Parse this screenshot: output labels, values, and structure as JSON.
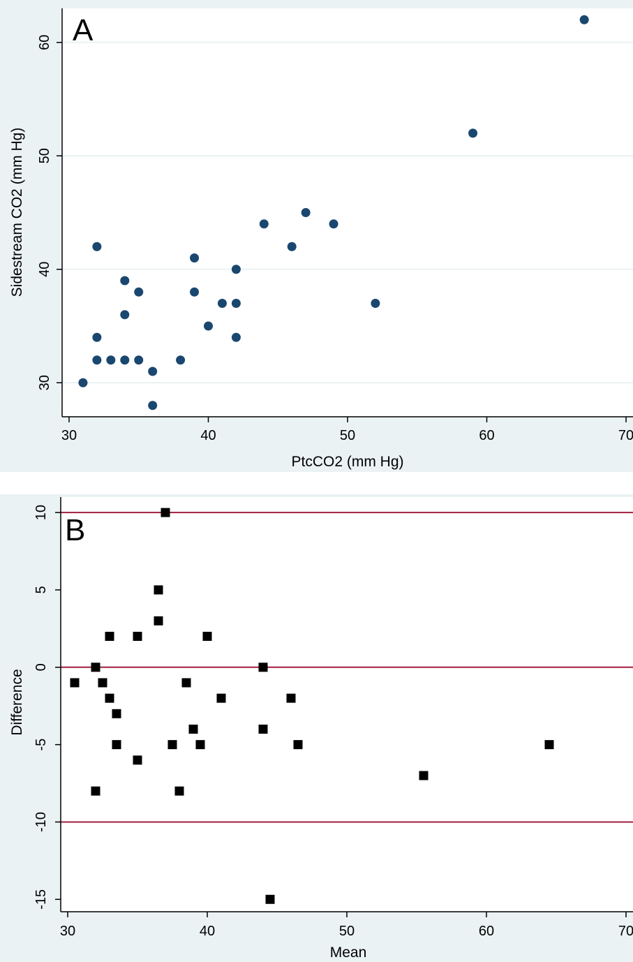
{
  "colors": {
    "outer_background": "#eaf2f3",
    "plot_background": "#ffffff",
    "grid": "#eaf2f3",
    "axis": "#000000",
    "scatter_marker": "#1a476f",
    "bland_altman_marker": "#000000",
    "reference_line": "#a01e3c"
  },
  "chart_data": [
    {
      "type": "scatter",
      "panel_label": "A",
      "xlabel": "PtcCO2 (mm Hg)",
      "ylabel": "Sidestream CO2 (mm Hg)",
      "xlim": [
        29.5,
        70.5
      ],
      "ylim": [
        27,
        63
      ],
      "xticks": [
        30,
        40,
        50,
        60,
        70
      ],
      "yticks": [
        30,
        40,
        50,
        60
      ],
      "xtick_labels": [
        "30",
        "40",
        "50",
        "60",
        "70"
      ],
      "ytick_labels": [
        "30",
        "40",
        "50",
        "60"
      ],
      "grid": true,
      "marker": "circle",
      "points": [
        [
          31,
          30
        ],
        [
          32,
          42
        ],
        [
          32,
          34
        ],
        [
          32,
          32
        ],
        [
          33,
          32
        ],
        [
          34,
          39
        ],
        [
          34,
          36
        ],
        [
          34,
          32
        ],
        [
          35,
          38
        ],
        [
          35,
          32
        ],
        [
          36,
          31
        ],
        [
          36,
          28
        ],
        [
          38,
          32
        ],
        [
          39,
          41
        ],
        [
          39,
          38
        ],
        [
          40,
          35
        ],
        [
          41,
          37
        ],
        [
          42,
          40
        ],
        [
          42,
          37
        ],
        [
          42,
          34
        ],
        [
          44,
          44
        ],
        [
          46,
          42
        ],
        [
          47,
          45
        ],
        [
          49,
          44
        ],
        [
          52,
          37
        ],
        [
          59,
          52
        ],
        [
          67,
          62
        ]
      ]
    },
    {
      "type": "scatter",
      "panel_label": "B",
      "xlabel": "Mean",
      "ylabel": "Difference",
      "xlim": [
        29.5,
        70.5
      ],
      "ylim": [
        -15.8,
        11
      ],
      "xticks": [
        30,
        40,
        50,
        60,
        70
      ],
      "yticks": [
        -15,
        -10,
        -5,
        0,
        5,
        10
      ],
      "xtick_labels": [
        "30",
        "40",
        "50",
        "60",
        "70"
      ],
      "ytick_labels": [
        "-15",
        "-10",
        "-5",
        "0",
        "5",
        "10"
      ],
      "grid": false,
      "marker": "square",
      "reference_lines": [
        10,
        0,
        -10
      ],
      "points": [
        [
          30.5,
          -1
        ],
        [
          32,
          0
        ],
        [
          32,
          -8
        ],
        [
          32.5,
          -1
        ],
        [
          33,
          2
        ],
        [
          33,
          -2
        ],
        [
          33.5,
          -3
        ],
        [
          33.5,
          -5
        ],
        [
          35,
          2
        ],
        [
          35,
          -6
        ],
        [
          36.5,
          5
        ],
        [
          36.5,
          3
        ],
        [
          37,
          10
        ],
        [
          37.5,
          -5
        ],
        [
          38,
          -8
        ],
        [
          38.5,
          -1
        ],
        [
          39,
          -4
        ],
        [
          39.5,
          -5
        ],
        [
          40,
          2
        ],
        [
          41,
          -2
        ],
        [
          44,
          0
        ],
        [
          44,
          -4
        ],
        [
          44.5,
          -15
        ],
        [
          46,
          -2
        ],
        [
          46.5,
          -5
        ],
        [
          55.5,
          -7
        ],
        [
          64.5,
          -5
        ]
      ]
    }
  ]
}
